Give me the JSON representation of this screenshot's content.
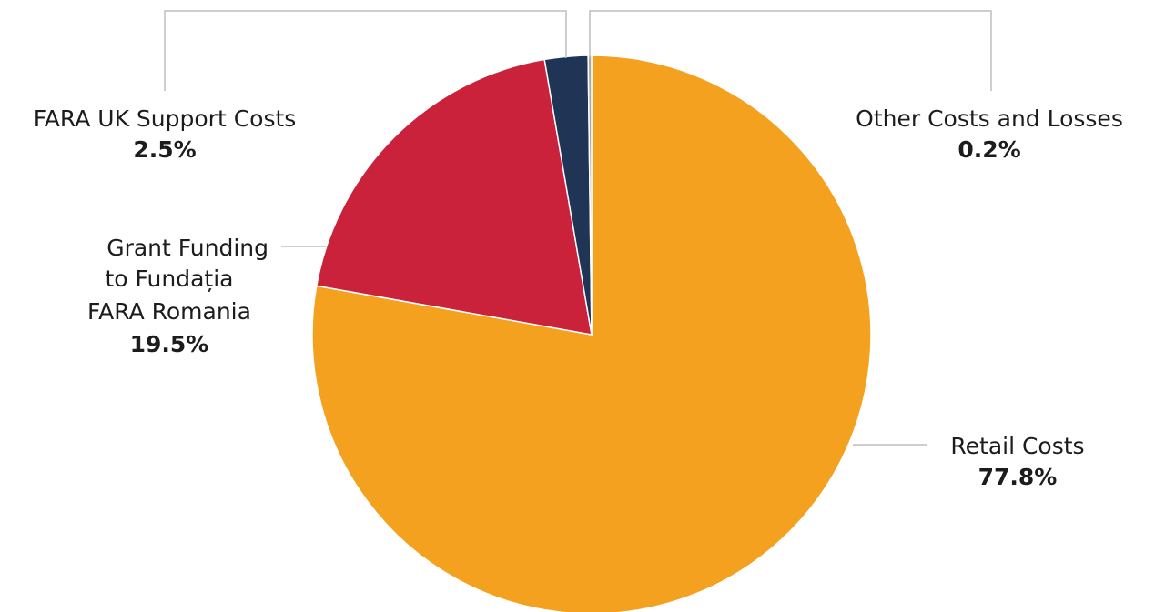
{
  "chart_data": {
    "type": "pie",
    "slices": [
      {
        "name": "Retail Costs",
        "value": 77.8,
        "label_lines": [
          "Retail Costs"
        ],
        "pct_label": "77.8%",
        "color": "#f4a11f"
      },
      {
        "name": "Grant Funding to Fundația FARA Romania",
        "value": 19.5,
        "label_lines": [
          "Grant Funding",
          "to Fundația",
          "FARA Romania"
        ],
        "pct_label": "19.5%",
        "color": "#c9223a"
      },
      {
        "name": "FARA UK Support Costs",
        "value": 2.5,
        "label_lines": [
          "FARA UK Support Costs"
        ],
        "pct_label": "2.5%",
        "color": "#203456"
      },
      {
        "name": "Other Costs and Losses",
        "value": 0.2,
        "label_lines": [
          "Other Costs and Losses"
        ],
        "pct_label": "0.2%",
        "color": "#a8a8a8"
      }
    ]
  }
}
